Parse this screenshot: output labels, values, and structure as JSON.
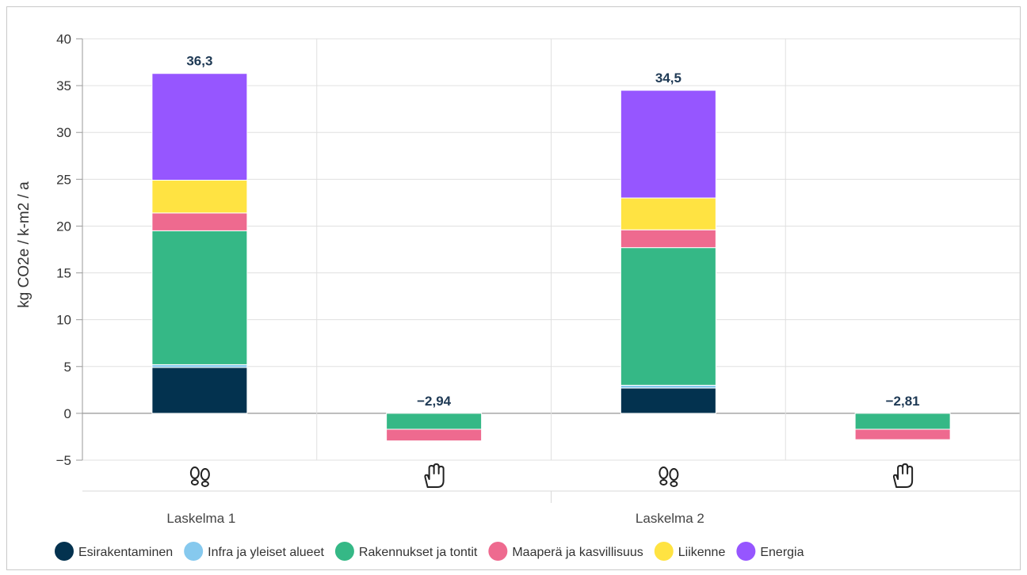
{
  "chart_data": {
    "type": "bar",
    "stacked": true,
    "ylabel": "kg CO2e / k-m2 / a",
    "ylim": [
      -5,
      40
    ],
    "yticks": [
      -5,
      0,
      5,
      10,
      15,
      20,
      25,
      30,
      35,
      40
    ],
    "categories": [
      {
        "group": "Laskelma 1",
        "icon": "footprint-icon"
      },
      {
        "group": "Laskelma 1",
        "icon": "hand-icon"
      },
      {
        "group": "Laskelma 2",
        "icon": "footprint-icon"
      },
      {
        "group": "Laskelma 2",
        "icon": "hand-icon"
      }
    ],
    "groups": [
      "Laskelma 1",
      "Laskelma 2"
    ],
    "series": [
      {
        "name": "Esirakentaminen",
        "color": "#03324f",
        "values": [
          4.9,
          0,
          2.7,
          0
        ]
      },
      {
        "name": "Infra ja yleiset alueet",
        "color": "#86c9ee",
        "values": [
          0.3,
          0,
          0.3,
          0
        ]
      },
      {
        "name": "Rakennukset ja tontit",
        "color": "#35b886",
        "values": [
          14.3,
          -1.7,
          14.7,
          -1.7
        ]
      },
      {
        "name": "Maaperä ja kasvillisuus",
        "color": "#ee6a8f",
        "values": [
          1.9,
          -1.24,
          1.9,
          -1.11
        ]
      },
      {
        "name": "Liikenne",
        "color": "#ffe342",
        "values": [
          3.5,
          0,
          3.4,
          0
        ]
      },
      {
        "name": "Energia",
        "color": "#9656ff",
        "values": [
          11.4,
          0,
          11.5,
          0
        ]
      }
    ],
    "totals": [
      "36,3",
      "−2,94",
      "34,5",
      "−2,81"
    ],
    "legend_position": "bottom"
  }
}
